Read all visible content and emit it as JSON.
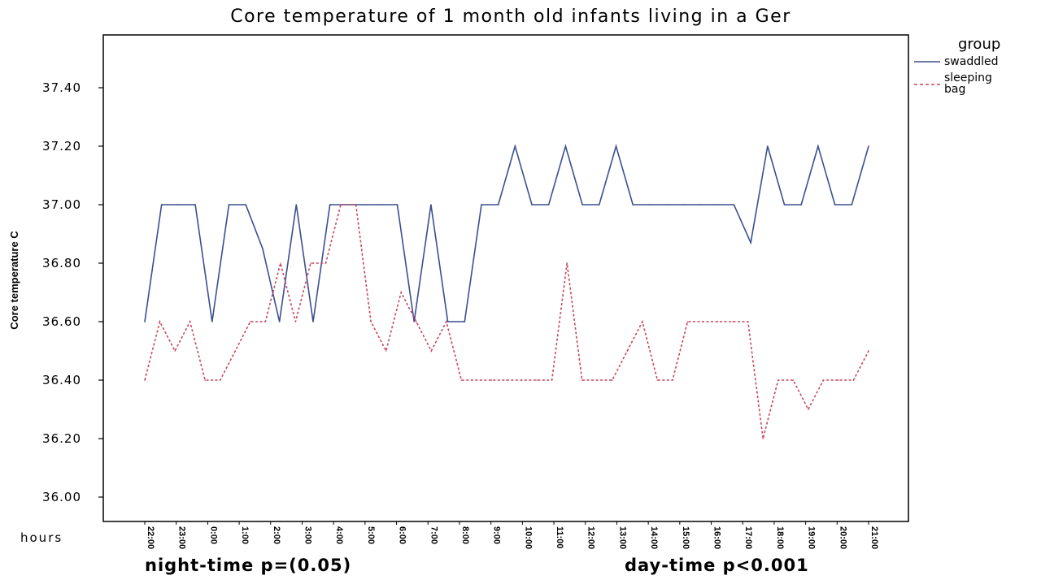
{
  "chart_data": {
    "type": "line",
    "title": "Core temperature of 1 month old infants living in a Ger",
    "ylabel": "Core temperature  C",
    "xlabel": "hours",
    "ylim": [
      35.9,
      37.6
    ],
    "yticks": [
      "36.00",
      "36.20",
      "36.40",
      "36.60",
      "36.80",
      "37.00",
      "37.20",
      "37.40"
    ],
    "ytick_values": [
      36.0,
      36.2,
      36.4,
      36.6,
      36.8,
      37.0,
      37.2,
      37.4
    ],
    "xtick_labels": [
      "22:00",
      "23:00",
      "0:00",
      "1:00",
      "2:00",
      "3:00",
      "4:00",
      "5:00",
      "6:00",
      "7:00",
      "8:00",
      "9:00",
      "10:00",
      "11:00",
      "12:00",
      "13:00",
      "14:00",
      "15:00",
      "16:00",
      "17:00",
      "18:00",
      "19:00",
      "20:00",
      "21:00"
    ],
    "x_note_left": "night-time p=(0.05)",
    "x_note_right": "day-time p<0.001",
    "legend": {
      "title": "group",
      "position": "top-right"
    },
    "grid": false,
    "series": [
      {
        "name": "swaddled",
        "color": "#3b4f8f",
        "dash": "solid",
        "values": [
          36.6,
          37.0,
          37.0,
          37.0,
          36.6,
          37.0,
          37.0,
          36.85,
          36.6,
          37.0,
          36.6,
          37.0,
          37.0,
          37.0,
          37.0,
          37.0,
          36.6,
          37.0,
          36.6,
          36.6,
          37.0,
          37.0,
          37.2,
          37.0,
          37.0,
          37.2,
          37.0,
          37.0,
          37.2,
          37.0,
          37.0,
          37.0,
          37.0,
          37.0,
          37.0,
          37.0,
          36.87,
          37.2,
          37.0,
          37.0,
          37.2,
          37.0,
          37.0,
          37.2
        ]
      },
      {
        "name": "sleeping bag",
        "color": "#c8475f",
        "dash": "dashed",
        "values": [
          36.4,
          36.6,
          36.5,
          36.6,
          36.4,
          36.4,
          36.5,
          36.6,
          36.6,
          36.8,
          36.6,
          36.8,
          36.8,
          37.0,
          37.0,
          36.6,
          36.5,
          36.7,
          36.6,
          36.5,
          36.6,
          36.4,
          36.4,
          36.4,
          36.4,
          36.4,
          36.4,
          36.4,
          36.8,
          36.4,
          36.4,
          36.4,
          36.5,
          36.6,
          36.4,
          36.4,
          36.6,
          36.6,
          36.6,
          36.6,
          36.6,
          36.2,
          36.4,
          36.4,
          36.3,
          36.4,
          36.4,
          36.4,
          36.5
        ]
      }
    ]
  }
}
